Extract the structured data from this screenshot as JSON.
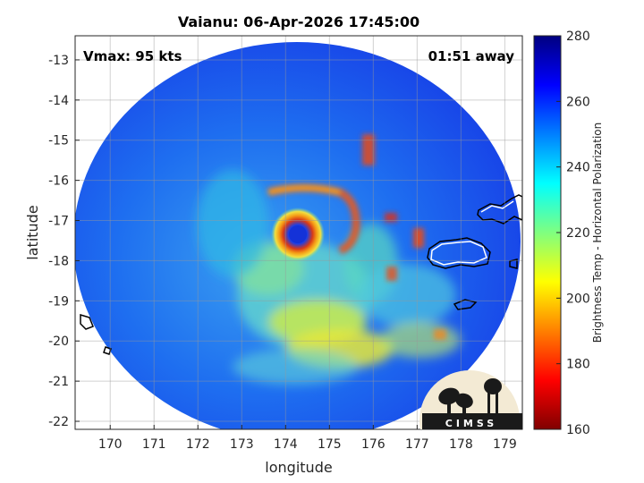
{
  "chart_data": {
    "type": "heatmap",
    "title": "Vaianu: 06-Apr-2026 17:45:00",
    "annotations": {
      "intensity": "Vmax: 95 kts",
      "time_away": "01:51 away"
    },
    "xlabel": "longitude",
    "ylabel": "latitude",
    "xlim": [
      169.2,
      179.4
    ],
    "ylim": [
      -22.2,
      -12.4
    ],
    "x_ticks": [
      170,
      171,
      172,
      173,
      174,
      175,
      176,
      177,
      178,
      179
    ],
    "y_ticks": [
      -13,
      -14,
      -15,
      -16,
      -17,
      -18,
      -19,
      -20,
      -21,
      -22
    ],
    "grid": true,
    "colorbar": {
      "label": "Brightness Temp - Horizontal Polarization",
      "range": [
        160,
        280
      ],
      "ticks": [
        280,
        260,
        240,
        220,
        200,
        180,
        160
      ],
      "colormap": "jet"
    },
    "storm_center": {
      "lon": 174.0,
      "lat": -17.2
    },
    "swath_center": {
      "lon": 174.25,
      "lat": -17.3
    },
    "logo_text": "CIMSS"
  }
}
